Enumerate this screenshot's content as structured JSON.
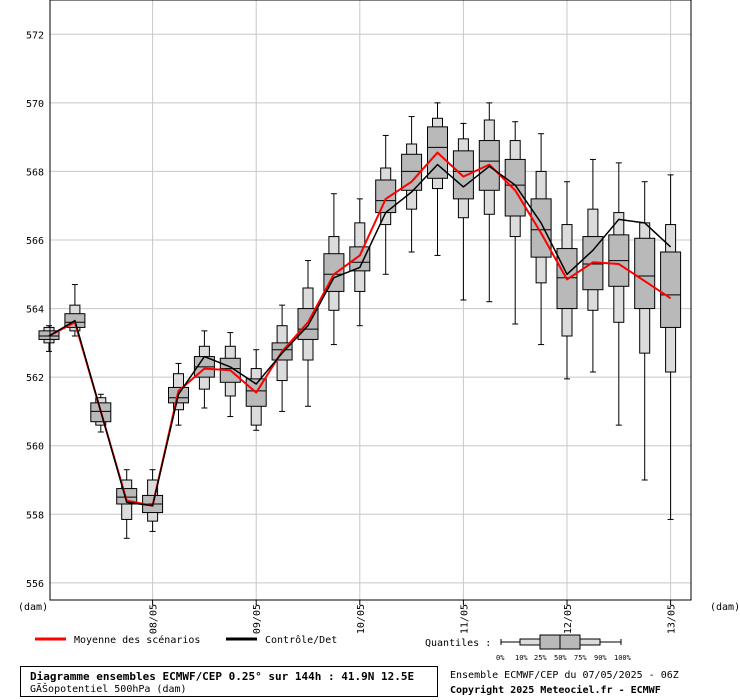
{
  "chart_data": {
    "type": "boxplot",
    "ylim": [
      555.5,
      573
    ],
    "grid": true,
    "y_unit_left": "(dam)",
    "y_unit_right": "(dam)",
    "yticks": [
      556,
      558,
      560,
      562,
      564,
      566,
      568,
      570,
      572
    ],
    "xticks": [
      {
        "label": "08/05",
        "x": 4
      },
      {
        "label": "09/05",
        "x": 8
      },
      {
        "label": "10/05",
        "x": 12
      },
      {
        "label": "11/05",
        "x": 16
      },
      {
        "label": "12/05",
        "x": 20
      },
      {
        "label": "13/05",
        "x": 24
      }
    ],
    "boxes": [
      {
        "x": 0,
        "min": 562.75,
        "p10": 563.0,
        "p25": 563.1,
        "median": 563.2,
        "p75": 563.35,
        "p90": 563.45,
        "max": 563.5
      },
      {
        "x": 1,
        "min": 563.2,
        "p10": 563.35,
        "p25": 563.45,
        "median": 563.6,
        "p75": 563.85,
        "p90": 564.1,
        "max": 564.7
      },
      {
        "x": 2,
        "min": 560.4,
        "p10": 560.6,
        "p25": 560.7,
        "median": 561.0,
        "p75": 561.25,
        "p90": 561.4,
        "max": 561.5
      },
      {
        "x": 3,
        "min": 557.3,
        "p10": 557.85,
        "p25": 558.3,
        "median": 558.5,
        "p75": 558.75,
        "p90": 559.0,
        "max": 559.3
      },
      {
        "x": 4,
        "min": 557.5,
        "p10": 557.8,
        "p25": 558.05,
        "median": 558.3,
        "p75": 558.55,
        "p90": 559.0,
        "max": 559.3
      },
      {
        "x": 5,
        "min": 560.6,
        "p10": 561.05,
        "p25": 561.25,
        "median": 561.4,
        "p75": 561.7,
        "p90": 562.1,
        "max": 562.4
      },
      {
        "x": 6,
        "min": 561.1,
        "p10": 561.65,
        "p25": 562.0,
        "median": 562.3,
        "p75": 562.6,
        "p90": 562.9,
        "max": 563.35
      },
      {
        "x": 7,
        "min": 560.85,
        "p10": 561.45,
        "p25": 561.85,
        "median": 562.25,
        "p75": 562.55,
        "p90": 562.9,
        "max": 563.3
      },
      {
        "x": 8,
        "min": 560.45,
        "p10": 560.6,
        "p25": 561.15,
        "median": 561.6,
        "p75": 561.95,
        "p90": 562.25,
        "max": 562.8
      },
      {
        "x": 9,
        "min": 561.0,
        "p10": 561.9,
        "p25": 562.5,
        "median": 562.8,
        "p75": 563.0,
        "p90": 563.5,
        "max": 564.1
      },
      {
        "x": 10,
        "min": 561.15,
        "p10": 562.5,
        "p25": 563.1,
        "median": 563.4,
        "p75": 564.0,
        "p90": 564.6,
        "max": 565.4
      },
      {
        "x": 11,
        "min": 562.95,
        "p10": 563.95,
        "p25": 564.5,
        "median": 565.0,
        "p75": 565.6,
        "p90": 566.1,
        "max": 567.35
      },
      {
        "x": 12,
        "min": 563.5,
        "p10": 564.5,
        "p25": 565.1,
        "median": 565.35,
        "p75": 565.8,
        "p90": 566.5,
        "max": 567.2
      },
      {
        "x": 13,
        "min": 565.0,
        "p10": 566.45,
        "p25": 566.8,
        "median": 567.15,
        "p75": 567.75,
        "p90": 568.1,
        "max": 569.05
      },
      {
        "x": 14,
        "min": 565.65,
        "p10": 566.9,
        "p25": 567.45,
        "median": 568.0,
        "p75": 568.5,
        "p90": 568.8,
        "max": 569.6
      },
      {
        "x": 15,
        "min": 565.55,
        "p10": 567.5,
        "p25": 567.8,
        "median": 568.7,
        "p75": 569.3,
        "p90": 569.55,
        "max": 570.0
      },
      {
        "x": 16,
        "min": 564.25,
        "p10": 566.65,
        "p25": 567.2,
        "median": 568.0,
        "p75": 568.6,
        "p90": 568.95,
        "max": 569.4
      },
      {
        "x": 17,
        "min": 564.2,
        "p10": 566.75,
        "p25": 567.45,
        "median": 568.3,
        "p75": 568.9,
        "p90": 569.5,
        "max": 570.0
      },
      {
        "x": 18,
        "min": 563.55,
        "p10": 566.1,
        "p25": 566.7,
        "median": 567.6,
        "p75": 568.35,
        "p90": 568.9,
        "max": 569.45
      },
      {
        "x": 19,
        "min": 562.95,
        "p10": 564.75,
        "p25": 565.5,
        "median": 566.3,
        "p75": 567.2,
        "p90": 568.0,
        "max": 569.1
      },
      {
        "x": 20,
        "min": 561.95,
        "p10": 563.2,
        "p25": 564.0,
        "median": 564.9,
        "p75": 565.75,
        "p90": 566.45,
        "max": 567.7
      },
      {
        "x": 21,
        "min": 562.15,
        "p10": 563.95,
        "p25": 564.55,
        "median": 565.3,
        "p75": 566.1,
        "p90": 566.9,
        "max": 568.35
      },
      {
        "x": 22,
        "min": 560.6,
        "p10": 563.6,
        "p25": 564.65,
        "median": 565.4,
        "p75": 566.15,
        "p90": 566.8,
        "max": 568.25
      },
      {
        "x": 23,
        "min": 559.0,
        "p10": 562.7,
        "p25": 564.0,
        "median": 564.95,
        "p75": 566.05,
        "p90": 566.5,
        "max": 567.7
      },
      {
        "x": 24,
        "min": 557.85,
        "p10": 562.15,
        "p25": 563.45,
        "median": 564.4,
        "p75": 565.65,
        "p90": 566.45,
        "max": 567.9
      }
    ],
    "series": [
      {
        "name": "Moyenne des scénarios",
        "color": "#ff0000",
        "values": [
          563.2,
          563.6,
          561.0,
          558.4,
          558.25,
          561.6,
          562.25,
          562.2,
          561.55,
          562.75,
          563.6,
          565.0,
          565.55,
          567.2,
          567.7,
          568.55,
          567.85,
          568.2,
          567.45,
          566.2,
          564.85,
          565.35,
          565.3,
          564.8,
          564.3
        ]
      },
      {
        "name": "Contrôle/Det",
        "color": "#000000",
        "values": [
          563.2,
          563.65,
          561.0,
          558.35,
          558.25,
          561.5,
          562.6,
          562.3,
          561.8,
          562.7,
          563.5,
          564.9,
          565.2,
          566.8,
          567.4,
          568.2,
          567.55,
          568.15,
          567.6,
          566.5,
          565.0,
          565.7,
          566.6,
          566.5,
          565.8
        ]
      }
    ]
  },
  "legend": {
    "mean_label": "Moyenne des scénarios",
    "mean_color": "#ff0000",
    "control_label": "Contrôle/Det",
    "control_color": "#000000",
    "quantiles_label": "Quantiles :",
    "quantiles_values": [
      "0%",
      "10%",
      "25%",
      "50%",
      "75%",
      "90%",
      "100%"
    ]
  },
  "caption": {
    "line1": "Diagramme ensembles ECMWF/CEP 0.25° sur 144h : 41.9N 12.5E",
    "line2": "GÃŠopotentiel 500hPa (dam)"
  },
  "run_info": "Ensemble ECMWF/CEP du 07/05/2025 - 06Z",
  "copyright": "Copyright 2025 Meteociel.fr - ECMWF",
  "colors": {
    "grid": "#c8c8c8",
    "box_inner": "#b9b9b9",
    "box_outer": "#dcdcdc",
    "outline": "#000000"
  }
}
